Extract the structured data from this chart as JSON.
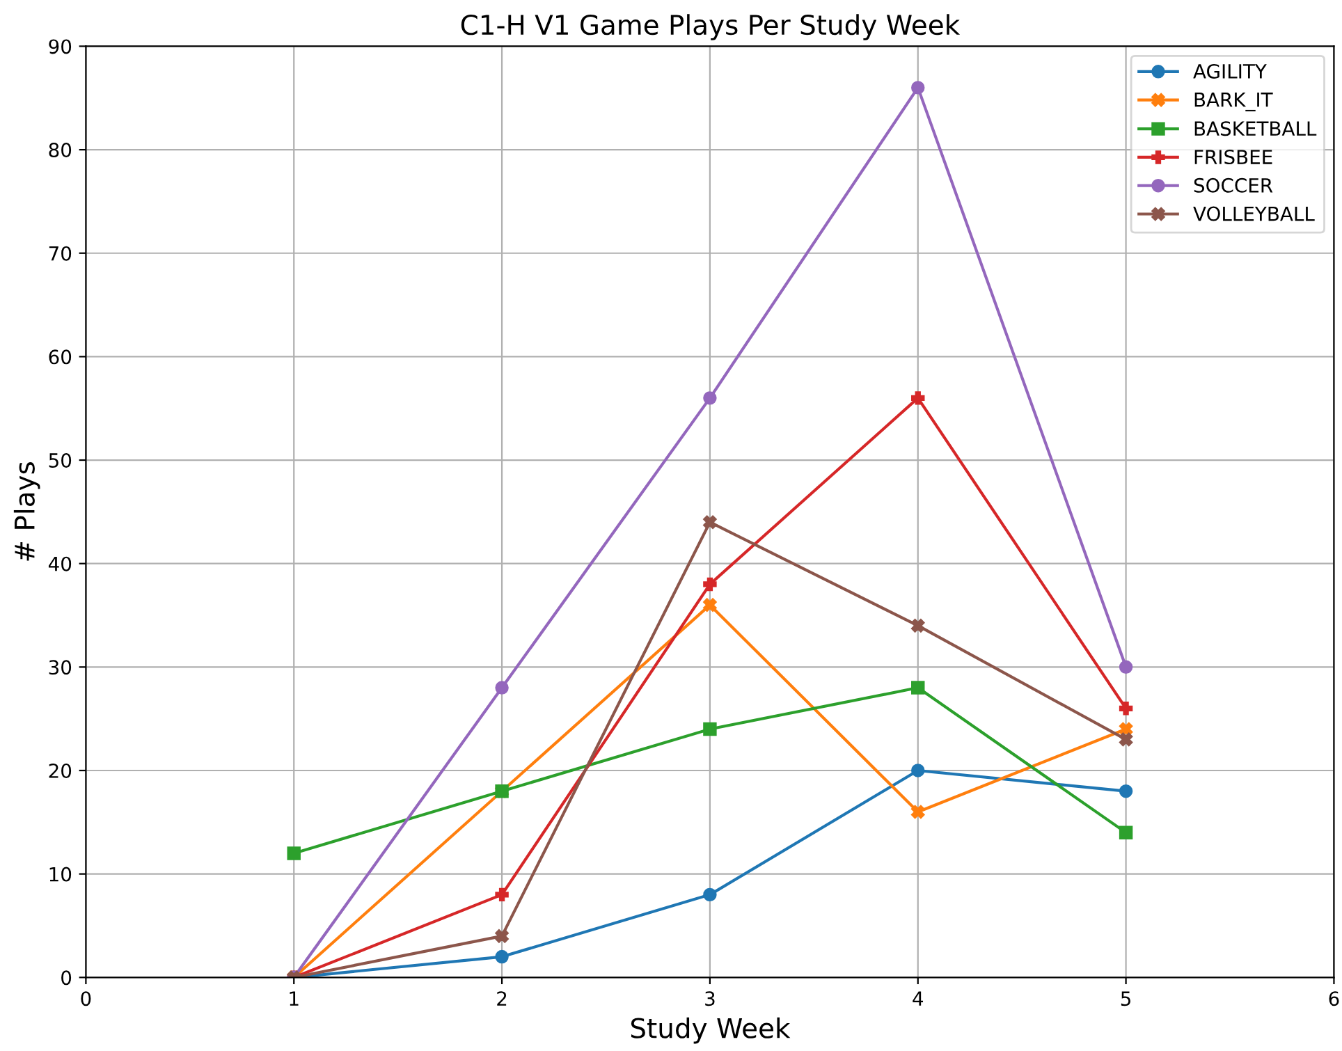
{
  "chart_data": {
    "type": "line",
    "title": "C1-H V1 Game Plays Per Study Week",
    "xlabel": "Study Week",
    "ylabel": "# Plays",
    "x": [
      1,
      2,
      3,
      4,
      5
    ],
    "series": [
      {
        "name": "AGILITY",
        "color": "#1f77b4",
        "marker": "circle",
        "values": [
          0,
          2,
          8,
          20,
          18
        ]
      },
      {
        "name": "BARK_IT",
        "color": "#ff7f0e",
        "marker": "cross",
        "values": [
          0,
          18,
          36,
          16,
          24
        ]
      },
      {
        "name": "BASKETBALL",
        "color": "#2ca02c",
        "marker": "square",
        "values": [
          12,
          18,
          24,
          28,
          14
        ]
      },
      {
        "name": "FRISBEE",
        "color": "#d62728",
        "marker": "plus",
        "values": [
          0,
          8,
          38,
          56,
          26
        ]
      },
      {
        "name": "SOCCER",
        "color": "#9467bd",
        "marker": "circle",
        "values": [
          0,
          28,
          56,
          86,
          30
        ]
      },
      {
        "name": "VOLLEYBALL",
        "color": "#8c564b",
        "marker": "cross",
        "values": [
          0,
          4,
          44,
          34,
          23
        ]
      }
    ],
    "xlim": [
      0,
      6
    ],
    "xticks": [
      0,
      1,
      2,
      3,
      4,
      5,
      6
    ],
    "ylim": [
      0,
      90
    ],
    "yticks": [
      0,
      10,
      20,
      30,
      40,
      50,
      60,
      70,
      80,
      90
    ],
    "grid": true,
    "legend": "top right",
    "line_style": "solid"
  }
}
